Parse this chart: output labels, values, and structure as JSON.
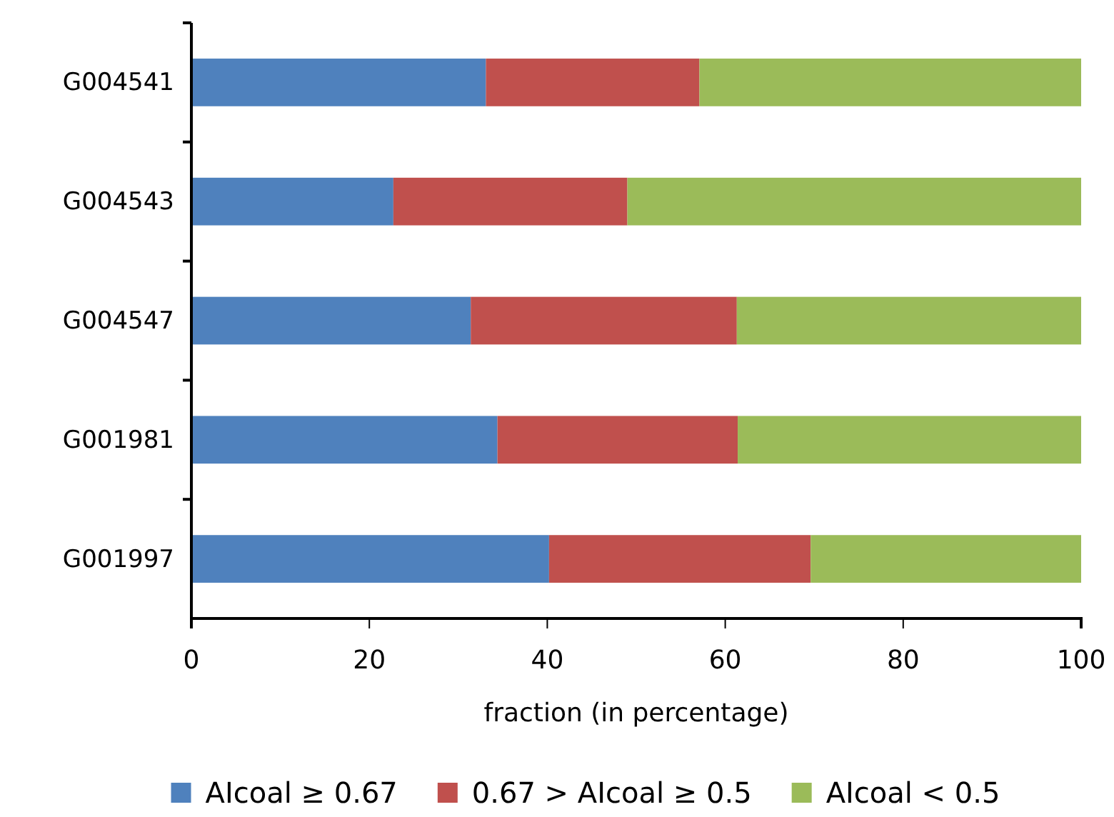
{
  "chart_data": {
    "type": "bar",
    "orientation": "horizontal",
    "stacked": true,
    "xlabel": "fraction (in percentage)",
    "categories": [
      "G004541",
      "G004543",
      "G004547",
      "G001981",
      "G001997"
    ],
    "series": [
      {
        "name": "AIcoal ≥ 0.67",
        "color": "#4f81bd",
        "values": [
          33.1,
          22.7,
          31.4,
          34.4,
          40.2
        ]
      },
      {
        "name": "0.67 > AIcoal ≥ 0.5",
        "color": "#c0504d",
        "values": [
          24.0,
          26.3,
          29.9,
          27.0,
          29.4
        ]
      },
      {
        "name": "AIcoal < 0.5",
        "color": "#9bbb59",
        "values": [
          42.9,
          51.0,
          38.7,
          38.6,
          30.4
        ]
      }
    ],
    "xlim": [
      0,
      100
    ],
    "xticks": [
      0,
      20,
      40,
      60,
      80,
      100
    ],
    "grid": false,
    "legend": "bottom"
  }
}
